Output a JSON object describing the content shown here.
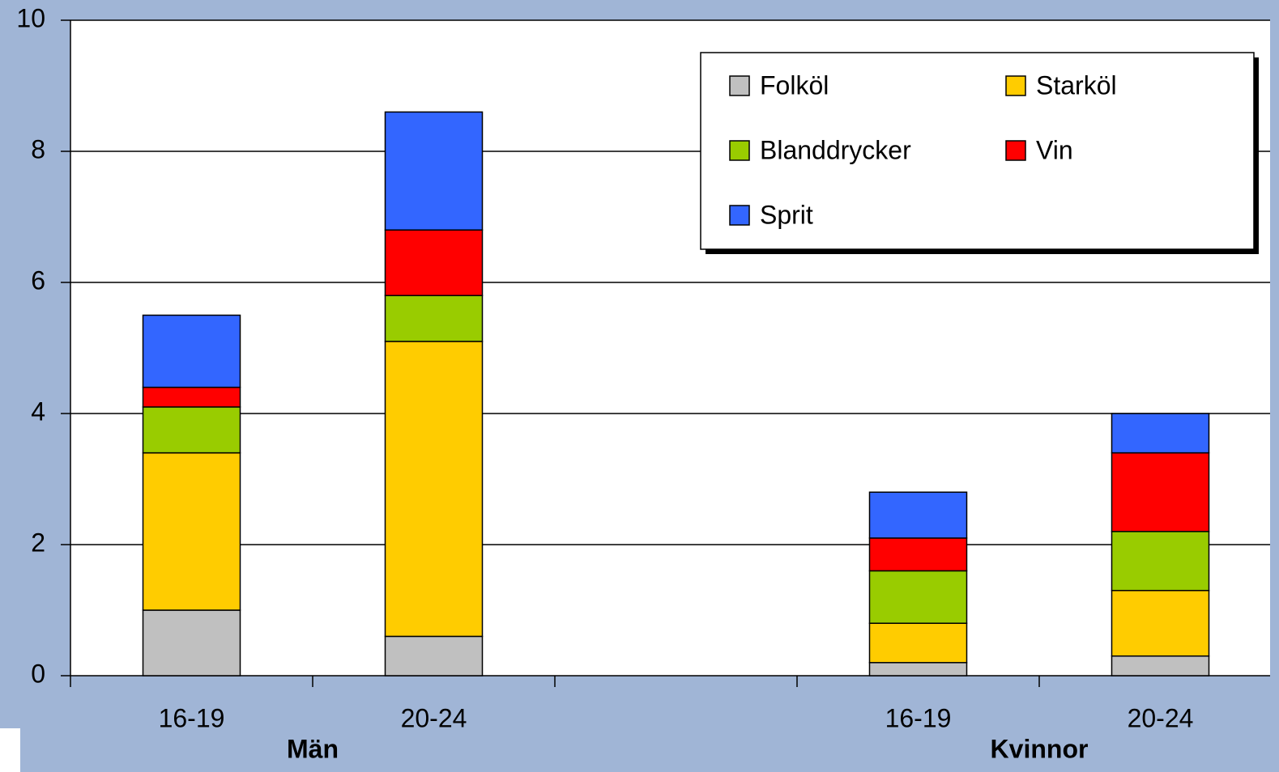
{
  "chart_data": {
    "type": "stacked_bar",
    "categories": [
      "16-19",
      "20-24",
      null,
      "16-19",
      "20-24"
    ],
    "groups": [
      "Män",
      "Kvinnor"
    ],
    "series": [
      {
        "name": "Folköl",
        "color": "#c0c0c0",
        "values": [
          1.0,
          0.6,
          null,
          0.2,
          0.3
        ]
      },
      {
        "name": "Starköl",
        "color": "#ffcc00",
        "values": [
          2.4,
          4.5,
          null,
          0.6,
          1.0
        ]
      },
      {
        "name": "Blanddrycker",
        "color": "#99cc00",
        "values": [
          0.7,
          0.7,
          null,
          0.8,
          0.9
        ]
      },
      {
        "name": "Vin",
        "color": "#ff0000",
        "values": [
          0.3,
          1.0,
          null,
          0.5,
          1.2
        ]
      },
      {
        "name": "Sprit",
        "color": "#3366ff",
        "values": [
          1.1,
          1.8,
          null,
          0.7,
          0.6
        ]
      }
    ],
    "ylim": [
      0,
      10
    ],
    "yticks": [
      0,
      2,
      4,
      6,
      8,
      10
    ],
    "grid": true
  }
}
